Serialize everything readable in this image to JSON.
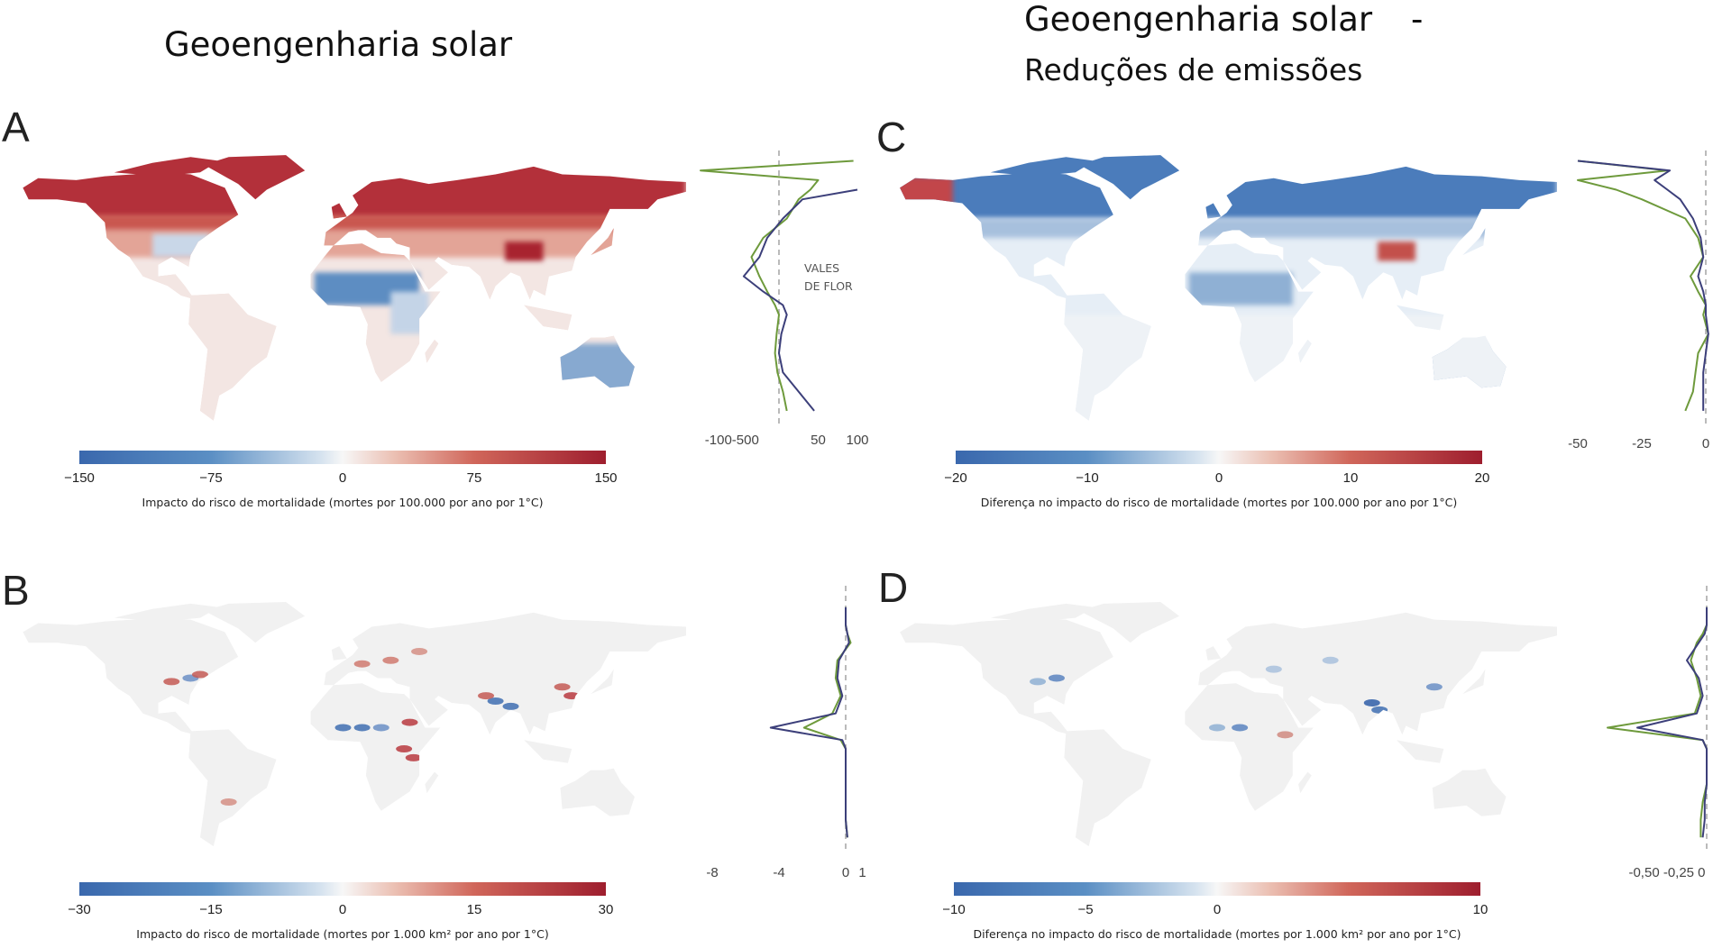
{
  "titles": {
    "left": "Geoengenharia solar",
    "right_line1": "Geoengenharia solar",
    "right_dash": "-",
    "right_line2": "Reduções de emissões"
  },
  "colors": {
    "negative": "#3a68ad",
    "zero": "#f7f7f7",
    "positive": "#9e1e2e",
    "profile_green": "#6e9a3c",
    "profile_blue": "#3c3f7a"
  },
  "chart_data": [
    {
      "panel": "A",
      "type": "heatmap-map",
      "colorbar": {
        "ticks": [
          "−150",
          "−75",
          "0",
          "75",
          "150"
        ],
        "range": [
          -150,
          150
        ],
        "label": "Impacto do risco de mortalidade (mortes por 100.000 por ano por 1°C)"
      },
      "profile": {
        "type": "line",
        "tick_labels": [
          {
            "label": "-100-500",
            "value": -60
          },
          {
            "label": "50",
            "value": 50
          },
          {
            "label": "100",
            "value": 100
          }
        ],
        "annotation": [
          "VALES",
          "DE FLOR"
        ],
        "lat": [
          80,
          75,
          70,
          65,
          60,
          50,
          40,
          30,
          20,
          12,
          5,
          0,
          -10,
          -20,
          -30,
          -40,
          -50
        ],
        "series": [
          {
            "values": [
              95,
              -100,
              50,
              40,
              25,
              10,
              -20,
              -35,
              -25,
              -15,
              -5,
              0,
              -3,
              -5,
              -2,
              5,
              10
            ]
          },
          {
            "values": [
              null,
              null,
              null,
              100,
              30,
              5,
              -15,
              -25,
              -45,
              -20,
              5,
              10,
              3,
              0,
              5,
              25,
              45
            ]
          }
        ]
      }
    },
    {
      "panel": "B",
      "type": "heatmap-map",
      "colorbar": {
        "ticks": [
          "−30",
          "−15",
          "0",
          "15",
          "30"
        ],
        "range": [
          -30,
          30
        ],
        "label": "Impacto do risco de mortalidade (mortes por 1.000 km² por ano por 1°C)"
      },
      "profile": {
        "type": "line",
        "tick_labels": [
          {
            "label": "-8",
            "value": -8
          },
          {
            "label": "-4",
            "value": -4
          },
          {
            "label": "0",
            "value": 0
          },
          {
            "label": "1",
            "value": 1
          }
        ],
        "lat": [
          80,
          75,
          70,
          65,
          60,
          50,
          40,
          30,
          20,
          12,
          5,
          0,
          -10,
          -20,
          -30,
          -40,
          -50
        ],
        "series": [
          {
            "values": [
              0,
              0,
              0,
              0.1,
              0.3,
              -0.5,
              -0.6,
              -0.3,
              -0.8,
              -2.5,
              -0.3,
              0,
              0,
              0,
              0,
              0,
              0.1
            ]
          },
          {
            "values": [
              0,
              0,
              0,
              0.1,
              0.2,
              -0.4,
              -0.5,
              -0.2,
              -0.6,
              -4.5,
              -0.2,
              0,
              0,
              0,
              0,
              0,
              0.1
            ]
          }
        ]
      }
    },
    {
      "panel": "C",
      "type": "heatmap-map",
      "colorbar": {
        "ticks": [
          "−20",
          "−10",
          "0",
          "10",
          "20"
        ],
        "range": [
          -20,
          20
        ],
        "label": "Diferença no impacto do risco de mortalidade (mortes por 100.000 por ano por 1°C)"
      },
      "profile": {
        "type": "line",
        "tick_labels": [
          {
            "label": "-50",
            "value": -50
          },
          {
            "label": "-25",
            "value": -25
          },
          {
            "label": "0",
            "value": 0
          }
        ],
        "lat": [
          80,
          75,
          70,
          65,
          60,
          50,
          40,
          30,
          20,
          12,
          5,
          0,
          -10,
          -20,
          -30,
          -40,
          -50
        ],
        "series": [
          {
            "values": [
              -50,
              -15,
              -50,
              -35,
              -25,
              -8,
              -3,
              -1,
              -6,
              -3,
              0,
              -1,
              1,
              -3,
              -4,
              -5,
              -8
            ]
          },
          {
            "values": [
              -50,
              -14,
              -20,
              -15,
              -10,
              -5,
              -2,
              -1,
              -3,
              -1,
              0,
              0,
              1,
              0,
              -1,
              -1,
              -1
            ]
          }
        ]
      }
    },
    {
      "panel": "D",
      "type": "heatmap-map",
      "colorbar": {
        "ticks": [
          "−10",
          "−5",
          "0",
          "10"
        ],
        "tick_values": [
          -10,
          -5,
          0,
          10
        ],
        "range": [
          -10,
          10
        ],
        "label": "Diferença no impacto do risco de mortalidade (mortes por 1.000 km² por ano por 1°C)"
      },
      "profile": {
        "type": "line",
        "tick_labels": [
          {
            "label": "-0,50 -0,25 0",
            "value": -0.2
          }
        ],
        "lat": [
          80,
          75,
          70,
          65,
          60,
          50,
          40,
          30,
          20,
          12,
          5,
          0,
          -10,
          -20,
          -30,
          -40,
          -50
        ],
        "series": [
          {
            "values": [
              0,
              0,
              0,
              -0.02,
              -0.05,
              -0.08,
              -0.05,
              -0.03,
              -0.06,
              -0.5,
              -0.02,
              0,
              0,
              0,
              -0.02,
              -0.03,
              -0.03
            ]
          },
          {
            "values": [
              0,
              0,
              0,
              -0.01,
              -0.04,
              -0.1,
              -0.04,
              -0.02,
              -0.05,
              -0.35,
              -0.02,
              0,
              0,
              0,
              -0.01,
              -0.01,
              -0.02
            ]
          }
        ]
      }
    }
  ]
}
